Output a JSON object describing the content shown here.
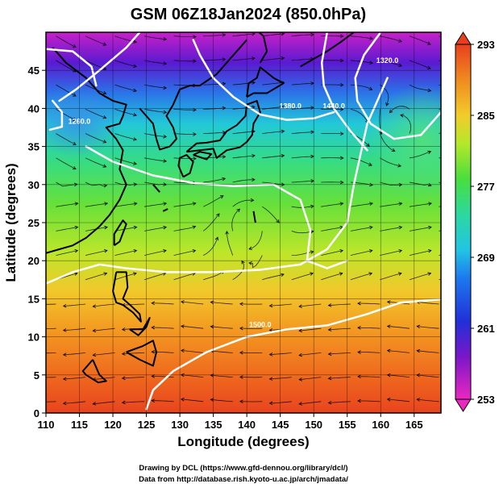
{
  "chart_data": {
    "type": "heatmap",
    "title": "GSM 06Z18Jan2024 (850.0hPa)",
    "xlabel": "Longitude (degrees)",
    "ylabel": "Latitude  (degrees)",
    "xlim": [
      110,
      170
    ],
    "ylim": [
      0,
      50
    ],
    "xticks": [
      110,
      115,
      120,
      125,
      130,
      135,
      140,
      145,
      150,
      155,
      160,
      165
    ],
    "yticks": [
      0,
      5,
      10,
      15,
      20,
      25,
      30,
      35,
      40,
      45
    ],
    "grid": true,
    "colorbar": {
      "position": "right",
      "min": 253,
      "max": 293,
      "ticks": [
        253,
        261,
        269,
        277,
        285,
        293
      ],
      "colors": [
        "#e832c8",
        "#4a0fc2",
        "#1c3ee8",
        "#21b8e8",
        "#2cd8a8",
        "#52e04a",
        "#c2ee2a",
        "#f4c42a",
        "#f07a1e",
        "#e83820"
      ]
    },
    "contour_labels": [
      "1260.0",
      "1380.0",
      "1440.0",
      "1500.0",
      "1320.0"
    ],
    "field_samples": [
      {
        "lon": 120,
        "lat": 47,
        "temp": 259
      },
      {
        "lon": 140,
        "lat": 47,
        "temp": 256
      },
      {
        "lon": 160,
        "lat": 45,
        "temp": 264
      },
      {
        "lon": 115,
        "lat": 40,
        "temp": 266
      },
      {
        "lon": 165,
        "lat": 37,
        "temp": 272
      },
      {
        "lon": 135,
        "lat": 30,
        "temp": 277
      },
      {
        "lon": 130,
        "lat": 22,
        "temp": 281
      },
      {
        "lon": 150,
        "lat": 15,
        "temp": 285
      },
      {
        "lon": 140,
        "lat": 5,
        "temp": 289
      }
    ]
  },
  "credits": {
    "line1": "Drawing by DCL (https://www.gfd-dennou.org/library/dcl/)",
    "line2": "Data from http://database.rish.kyoto-u.ac.jp/arch/jmadata/"
  }
}
